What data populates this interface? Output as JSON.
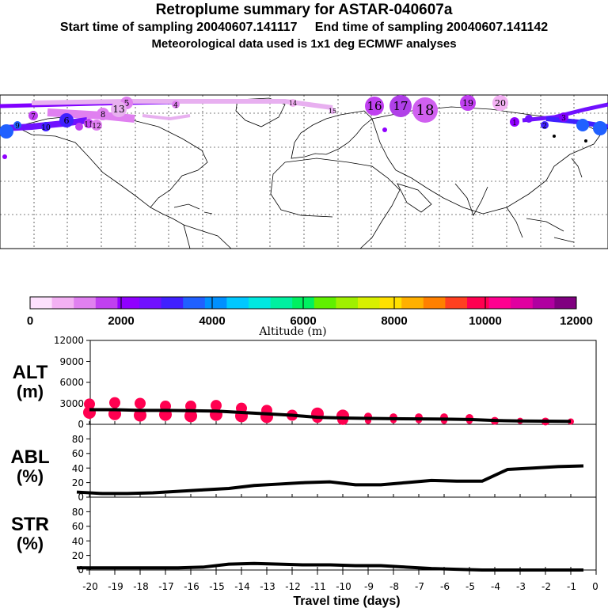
{
  "header": {
    "title": "Retroplume summary for ASTAR-040607a",
    "start_label": "Start time of sampling 20040607.141117",
    "end_label": "End time of sampling 20040607.141142",
    "met_line": "Meteorological data used is 1x1 deg ECMWF analyses"
  },
  "map": {
    "trajectory_labels": [
      "1",
      "2",
      "3",
      "4",
      "5",
      "6",
      "7",
      "8",
      "9",
      "10",
      "11",
      "12",
      "13",
      "14",
      "15",
      "16",
      "17",
      "18",
      "19",
      "20"
    ]
  },
  "colorbar": {
    "tick_labels": [
      "0",
      "2000",
      "4000",
      "6000",
      "8000",
      "10000",
      "12000"
    ],
    "label": "Altitude (m)",
    "colors": [
      "#fde0fd",
      "#f3b1f3",
      "#e080f0",
      "#c040f0",
      "#9000ff",
      "#7010ff",
      "#4020ff",
      "#2060ff",
      "#0090ff",
      "#00c8ff",
      "#00e8e0",
      "#00f0a0",
      "#00f060",
      "#60f000",
      "#a0f000",
      "#d8f000",
      "#ffe000",
      "#ffb000",
      "#ff8000",
      "#ff4020",
      "#ff0050",
      "#ff0090",
      "#e000a0",
      "#b000a0",
      "#800080"
    ]
  },
  "chart_data": [
    {
      "type": "line",
      "name": "ALT",
      "title": "ALT",
      "ylabel": "ALT (m)",
      "xlabel": "Travel time (days)",
      "xlim": [
        -20.5,
        0
      ],
      "ylim": [
        0,
        12000
      ],
      "yticks": [
        "0",
        "3000",
        "6000",
        "9000",
        "12000"
      ],
      "series": [
        {
          "name": "mean altitude",
          "x": [
            -20,
            -19,
            -18,
            -17,
            -16,
            -15,
            -14,
            -13,
            -12,
            -11,
            -10,
            -9,
            -8,
            -7,
            -6,
            -5,
            -4,
            -3,
            -2,
            -1
          ],
          "y": [
            2100,
            2100,
            2000,
            2000,
            1950,
            1900,
            1700,
            1500,
            1300,
            1000,
            900,
            850,
            800,
            780,
            750,
            700,
            550,
            480,
            450,
            430
          ]
        },
        {
          "name": "plume centroids",
          "x": [
            -20,
            -20,
            -19,
            -19,
            -18,
            -18,
            -17,
            -17,
            -16,
            -16,
            -15,
            -15,
            -14,
            -14,
            -13,
            -13,
            -12,
            -11,
            -11,
            -10,
            -10,
            -9,
            -9,
            -8,
            -8,
            -7,
            -7,
            -6,
            -6,
            -5,
            -5,
            -4,
            -3,
            -2,
            -1
          ],
          "y": [
            2900,
            1700,
            3100,
            1500,
            3000,
            1300,
            2600,
            1400,
            2600,
            1200,
            2700,
            1400,
            2300,
            1200,
            2000,
            1100,
            1300,
            1500,
            1000,
            1200,
            700,
            1100,
            500,
            1000,
            600,
            1000,
            600,
            1000,
            500,
            900,
            500,
            500,
            500,
            400,
            400
          ]
        }
      ]
    },
    {
      "type": "line",
      "name": "ABL",
      "title": "ABL",
      "ylabel": "ABL (%)",
      "xlim": [
        -20.5,
        0
      ],
      "ylim": [
        0,
        100
      ],
      "yticks": [
        "0",
        "20",
        "40",
        "60",
        "80"
      ],
      "series": [
        {
          "name": "fraction in ABL",
          "x": [
            -20.5,
            -19.5,
            -18.5,
            -17.5,
            -16.5,
            -15.5,
            -14.5,
            -13.5,
            -12.5,
            -11.5,
            -10.5,
            -9.5,
            -8.5,
            -7.5,
            -6.5,
            -5.5,
            -4.5,
            -3.5,
            -2.5,
            -1.5,
            -0.5
          ],
          "y": [
            7,
            5,
            5,
            6,
            8,
            10,
            12,
            16,
            18,
            20,
            21,
            17,
            17,
            20,
            23,
            22,
            22,
            38,
            40,
            42,
            43
          ]
        }
      ]
    },
    {
      "type": "line",
      "name": "STR",
      "title": "STR",
      "ylabel": "STR (%)",
      "xlabel": "Travel time (days)",
      "xlim": [
        -20.5,
        0
      ],
      "ylim": [
        0,
        100
      ],
      "yticks": [
        "0",
        "20",
        "40",
        "60",
        "80"
      ],
      "xticks": [
        "-20",
        "-19",
        "-18",
        "-17",
        "-16",
        "-15",
        "-14",
        "-13",
        "-12",
        "-11",
        "-10",
        "-9",
        "-8",
        "-7",
        "-6",
        "-5",
        "-4",
        "-3",
        "-2",
        "-1",
        "0"
      ],
      "series": [
        {
          "name": "fraction in stratosphere",
          "x": [
            -20.5,
            -19.5,
            -18.5,
            -17.5,
            -16.5,
            -15.5,
            -14.5,
            -13.5,
            -12.5,
            -11.5,
            -10.5,
            -9.5,
            -8.5,
            -7.5,
            -6.5,
            -5.5,
            -4.5,
            -3.5,
            -2.5,
            -1.5,
            -0.5
          ],
          "y": [
            3,
            3,
            3,
            3,
            3,
            4,
            8,
            9,
            8,
            7,
            7,
            6,
            6,
            4,
            2,
            1,
            0,
            0,
            0,
            0,
            0
          ]
        }
      ]
    }
  ],
  "panels": {
    "alt_label_top": "ALT",
    "alt_label_bottom": "(m)",
    "abl_label_top": "ABL",
    "abl_label_bottom": "(%)",
    "str_label_top": "STR",
    "str_label_bottom": "(%)"
  }
}
